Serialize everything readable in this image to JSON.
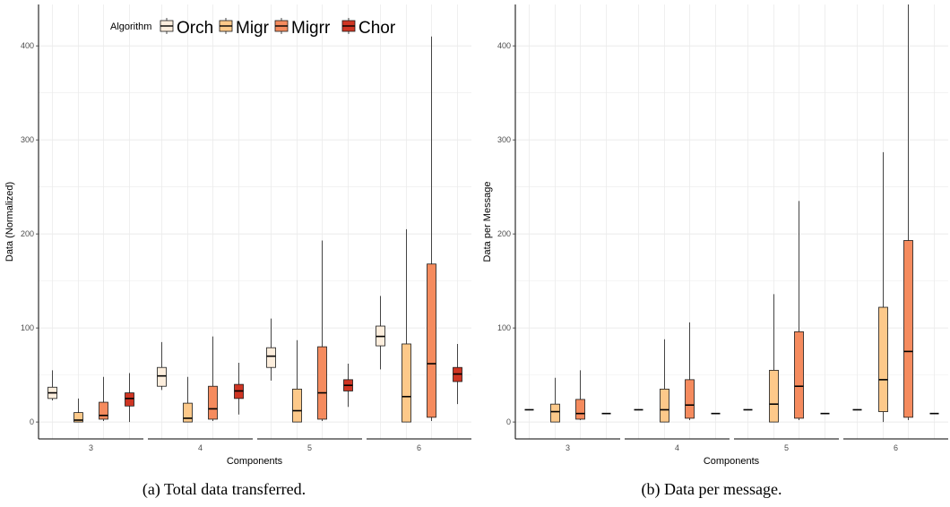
{
  "legend": {
    "title": "Algorithm",
    "entries": [
      "Orch",
      "Migr",
      "Migrr",
      "Chor"
    ]
  },
  "colors": {
    "Orch": "#fdeedd",
    "Migr": "#fdc98a",
    "Migrr": "#f58b5e",
    "Chor": "#cf3523",
    "grid": "#ebebeb"
  },
  "chart_data": [
    {
      "type": "boxplot",
      "caption": "(a) Total data transferred.",
      "xlabel": "Components",
      "ylabel": "Data  (Normalized)",
      "ylim": [
        -18,
        444
      ],
      "yticks": [
        0,
        100,
        200,
        300,
        400
      ],
      "facets": [
        "3",
        "4",
        "5",
        "6"
      ],
      "grid": true,
      "legend_position": "top-left",
      "series": [
        {
          "name": "Orch",
          "boxes": [
            {
              "min": 23,
              "q1": 25,
              "median": 31,
              "q3": 37,
              "max": 55
            },
            {
              "min": 34,
              "q1": 38,
              "median": 49,
              "q3": 58,
              "max": 85
            },
            {
              "min": 44,
              "q1": 58,
              "median": 70,
              "q3": 79,
              "max": 110
            },
            {
              "min": 56,
              "q1": 81,
              "median": 91,
              "q3": 102,
              "max": 134
            }
          ]
        },
        {
          "name": "Migr",
          "boxes": [
            {
              "min": 0,
              "q1": 0,
              "median": 2,
              "q3": 10,
              "max": 25
            },
            {
              "min": 0,
              "q1": 0,
              "median": 4,
              "q3": 20,
              "max": 48
            },
            {
              "min": 0,
              "q1": 0,
              "median": 12,
              "q3": 35,
              "max": 87
            },
            {
              "min": 0,
              "q1": 0,
              "median": 27,
              "q3": 83,
              "max": 205
            }
          ]
        },
        {
          "name": "Migrr",
          "boxes": [
            {
              "min": 1,
              "q1": 3,
              "median": 7,
              "q3": 21,
              "max": 48
            },
            {
              "min": 1,
              "q1": 3,
              "median": 14,
              "q3": 38,
              "max": 91
            },
            {
              "min": 1,
              "q1": 3,
              "median": 31,
              "q3": 80,
              "max": 193
            },
            {
              "min": 1,
              "q1": 5,
              "median": 62,
              "q3": 168,
              "max": 410
            }
          ]
        },
        {
          "name": "Chor",
          "boxes": [
            {
              "min": 0,
              "q1": 17,
              "median": 25,
              "q3": 31,
              "max": 52
            },
            {
              "min": 8,
              "q1": 25,
              "median": 33,
              "q3": 40,
              "max": 63
            },
            {
              "min": 16,
              "q1": 33,
              "median": 39,
              "q3": 45,
              "max": 62
            },
            {
              "min": 19,
              "q1": 43,
              "median": 51,
              "q3": 58,
              "max": 83
            }
          ]
        }
      ]
    },
    {
      "type": "boxplot",
      "caption": "(b) Data per message.",
      "xlabel": "Components",
      "ylabel": "Data per Message",
      "ylim": [
        -18,
        444
      ],
      "yticks": [
        0,
        100,
        200,
        300,
        400
      ],
      "facets": [
        "3",
        "4",
        "5",
        "6"
      ],
      "grid": true,
      "series": [
        {
          "name": "Orch",
          "boxes": [
            {
              "min": 13,
              "q1": 13,
              "median": 13,
              "q3": 13,
              "max": 13
            },
            {
              "min": 13,
              "q1": 13,
              "median": 13,
              "q3": 13,
              "max": 13
            },
            {
              "min": 13,
              "q1": 13,
              "median": 13,
              "q3": 13,
              "max": 13
            },
            {
              "min": 13,
              "q1": 13,
              "median": 13,
              "q3": 13,
              "max": 13
            }
          ]
        },
        {
          "name": "Migr",
          "boxes": [
            {
              "min": 0,
              "q1": 0,
              "median": 11,
              "q3": 19,
              "max": 47
            },
            {
              "min": 0,
              "q1": 0,
              "median": 13,
              "q3": 35,
              "max": 88
            },
            {
              "min": 0,
              "q1": 0,
              "median": 19,
              "q3": 55,
              "max": 136
            },
            {
              "min": 0,
              "q1": 11,
              "median": 45,
              "q3": 122,
              "max": 287
            }
          ]
        },
        {
          "name": "Migrr",
          "boxes": [
            {
              "min": 2,
              "q1": 3,
              "median": 9,
              "q3": 24,
              "max": 55
            },
            {
              "min": 2,
              "q1": 4,
              "median": 18,
              "q3": 45,
              "max": 106
            },
            {
              "min": 2,
              "q1": 4,
              "median": 38,
              "q3": 96,
              "max": 235
            },
            {
              "min": 2,
              "q1": 5,
              "median": 75,
              "q3": 193,
              "max": 444
            }
          ]
        },
        {
          "name": "Chor",
          "boxes": [
            {
              "min": 9,
              "q1": 9,
              "median": 9,
              "q3": 9,
              "max": 9
            },
            {
              "min": 9,
              "q1": 9,
              "median": 9,
              "q3": 9,
              "max": 9
            },
            {
              "min": 9,
              "q1": 9,
              "median": 9,
              "q3": 9,
              "max": 9
            },
            {
              "min": 9,
              "q1": 9,
              "median": 9,
              "q3": 9,
              "max": 9
            }
          ]
        }
      ]
    }
  ]
}
